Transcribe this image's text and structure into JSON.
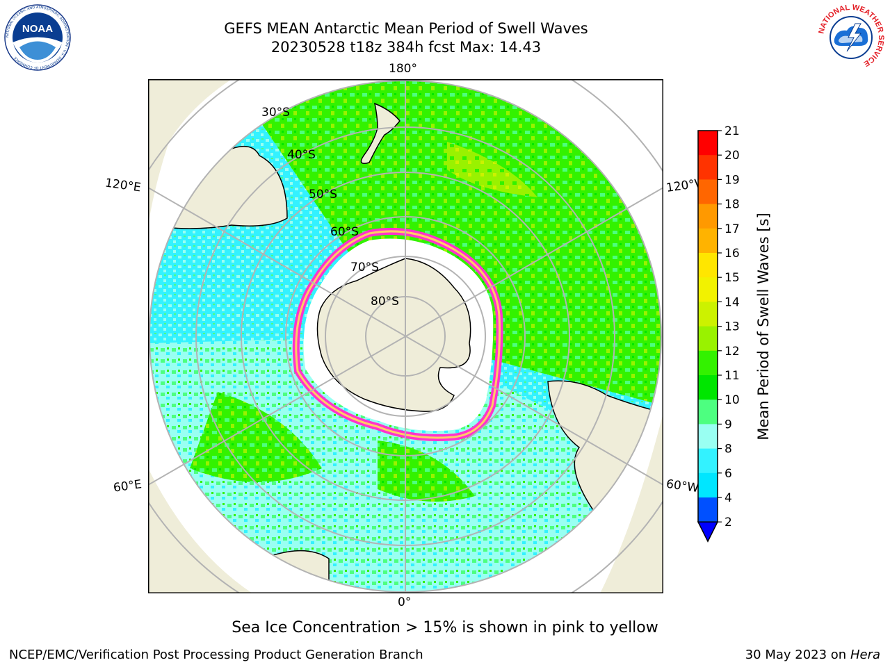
{
  "header": {
    "title_line1": "GEFS MEAN Antarctic Mean Period of Swell Waves",
    "title_line2": "20230528 t18z 384h fcst   Max: 14.43"
  },
  "logos": {
    "left": "noaa-logo",
    "left_text": "NATIONAL OCEANIC AND ATMOSPHERIC ADMINISTRATION · U.S. DEPARTMENT OF COMMERCE",
    "left_center": "NOAA",
    "right": "nws-logo",
    "right_text": "NATIONAL WEATHER SERVICE"
  },
  "map": {
    "longitude_labels": {
      "top": "180°",
      "bottom": "0°",
      "upper_left": "120°E",
      "lower_left": "60°E",
      "upper_right": "120°W",
      "lower_right": "60°W"
    },
    "latitude_labels": [
      "30°S",
      "40°S",
      "50°S",
      "60°S",
      "70°S",
      "80°S"
    ]
  },
  "colorbar": {
    "label": "Mean Period of Swell Waves [s]",
    "ticks": [
      "2",
      "4",
      "6",
      "8",
      "9",
      "10",
      "11",
      "12",
      "13",
      "14",
      "15",
      "16",
      "17",
      "18",
      "19",
      "20",
      "21"
    ],
    "colors": [
      "#0050ff",
      "#00e6ff",
      "#33f2ff",
      "#99fff2",
      "#4dff80",
      "#00e600",
      "#33f200",
      "#99f200",
      "#ccf200",
      "#f2f200",
      "#ffe600",
      "#ffb300",
      "#ff9900",
      "#ff6600",
      "#ff3300",
      "#ff0000"
    ],
    "extend_color": "#0000ff"
  },
  "footer": {
    "note": "Sea Ice Concentration > 15% is shown in pink to yellow",
    "credit": "NCEP/EMC/Verification Post Processing Product Generation Branch",
    "date": "30 May 2023 on",
    "machine": "Hera"
  },
  "colors": {
    "land": "#efedd9",
    "ocean_cyan": "#33f2ff",
    "ocean_light": "#99fff2",
    "ocean_green": "#33f200",
    "ice_pink": "#ff33cc",
    "ice_yellow": "#ffcc66",
    "grid": "#b3b3b3"
  }
}
